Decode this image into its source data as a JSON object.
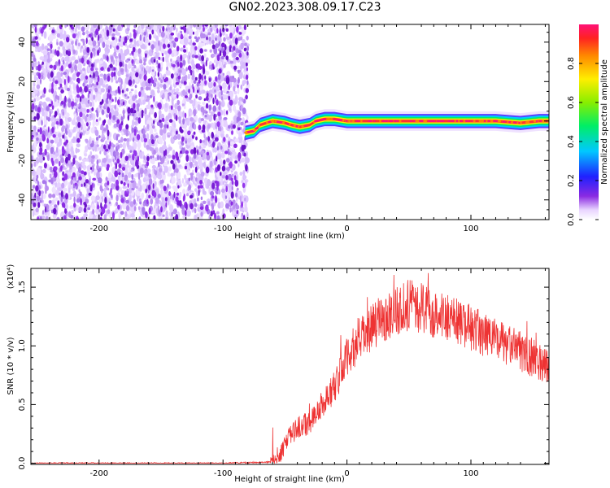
{
  "title": "GN02.2023.308.09.17.C23",
  "chart_data": [
    {
      "type": "heatmap",
      "name": "spectrogram",
      "xlabel": "Height of straight line (km)",
      "ylabel": "Frequency (Hz)",
      "xlim": [
        -255,
        163
      ],
      "ylim": [
        -50,
        49
      ],
      "xticks": [
        -200,
        -100,
        0,
        100
      ],
      "yticks": [
        -40,
        -20,
        0,
        20,
        40
      ],
      "xtick_labels": [
        "-200",
        "-100",
        "0",
        "100"
      ],
      "ytick_labels": [
        "-40",
        "-20",
        "0",
        "20",
        "40"
      ],
      "noise_region_x": [
        -255,
        -80
      ],
      "signal_band": [
        {
          "x": -82,
          "f": -6
        },
        {
          "x": -75,
          "f": -5
        },
        {
          "x": -70,
          "f": -2
        },
        {
          "x": -60,
          "f": 0
        },
        {
          "x": -50,
          "f": -1
        },
        {
          "x": -45,
          "f": -2
        },
        {
          "x": -38,
          "f": -3
        },
        {
          "x": -30,
          "f": -2
        },
        {
          "x": -25,
          "f": 0
        },
        {
          "x": -18,
          "f": 1
        },
        {
          "x": -10,
          "f": 1
        },
        {
          "x": 0,
          "f": 0
        },
        {
          "x": 20,
          "f": 0
        },
        {
          "x": 40,
          "f": 0
        },
        {
          "x": 60,
          "f": 0
        },
        {
          "x": 80,
          "f": 0
        },
        {
          "x": 100,
          "f": 0
        },
        {
          "x": 120,
          "f": 0
        },
        {
          "x": 140,
          "f": -1
        },
        {
          "x": 155,
          "f": 0
        },
        {
          "x": 163,
          "f": 0
        }
      ]
    },
    {
      "type": "line",
      "name": "snr",
      "xlabel": "Height of straight line (km)",
      "ylabel": "SNR (10 * v/v)",
      "y_multiplier": "(x10⁴)",
      "xlim": [
        -255,
        163
      ],
      "ylim": [
        -0.01,
        1.66
      ],
      "xticks": [
        -200,
        -100,
        0,
        100
      ],
      "yticks": [
        0.0,
        0.5,
        1.0,
        1.5
      ],
      "xtick_labels": [
        "-200",
        "-100",
        "0",
        "100"
      ],
      "ytick_labels": [
        "0.0",
        "0.5",
        "1.0",
        "1.5"
      ],
      "color": "#ee3333",
      "series": [
        {
          "name": "SNR",
          "x": [
            -255,
            -200,
            -150,
            -100,
            -62,
            -55,
            -50,
            -45,
            -40,
            -30,
            -20,
            -10,
            0,
            10,
            20,
            30,
            40,
            50,
            60,
            70,
            80,
            90,
            100,
            110,
            120,
            130,
            140,
            150,
            160,
            163
          ],
          "y": [
            0.0,
            0.0,
            0.0,
            0.0,
            0.01,
            0.05,
            0.15,
            0.25,
            0.3,
            0.35,
            0.5,
            0.65,
            0.9,
            1.05,
            1.15,
            1.25,
            1.3,
            1.35,
            1.32,
            1.28,
            1.25,
            1.2,
            1.15,
            1.1,
            1.05,
            1.0,
            0.95,
            0.9,
            0.85,
            0.83
          ]
        }
      ]
    },
    {
      "type": "colorbar",
      "name": "colorbar",
      "label": "Normalized spectral amplitude",
      "range": [
        0.0,
        1.0
      ],
      "ticks": [
        0.0,
        0.2,
        0.4,
        0.6,
        0.8
      ],
      "tick_labels": [
        "0.0",
        "0.2",
        "0.4",
        "0.6",
        "0.8"
      ]
    }
  ]
}
